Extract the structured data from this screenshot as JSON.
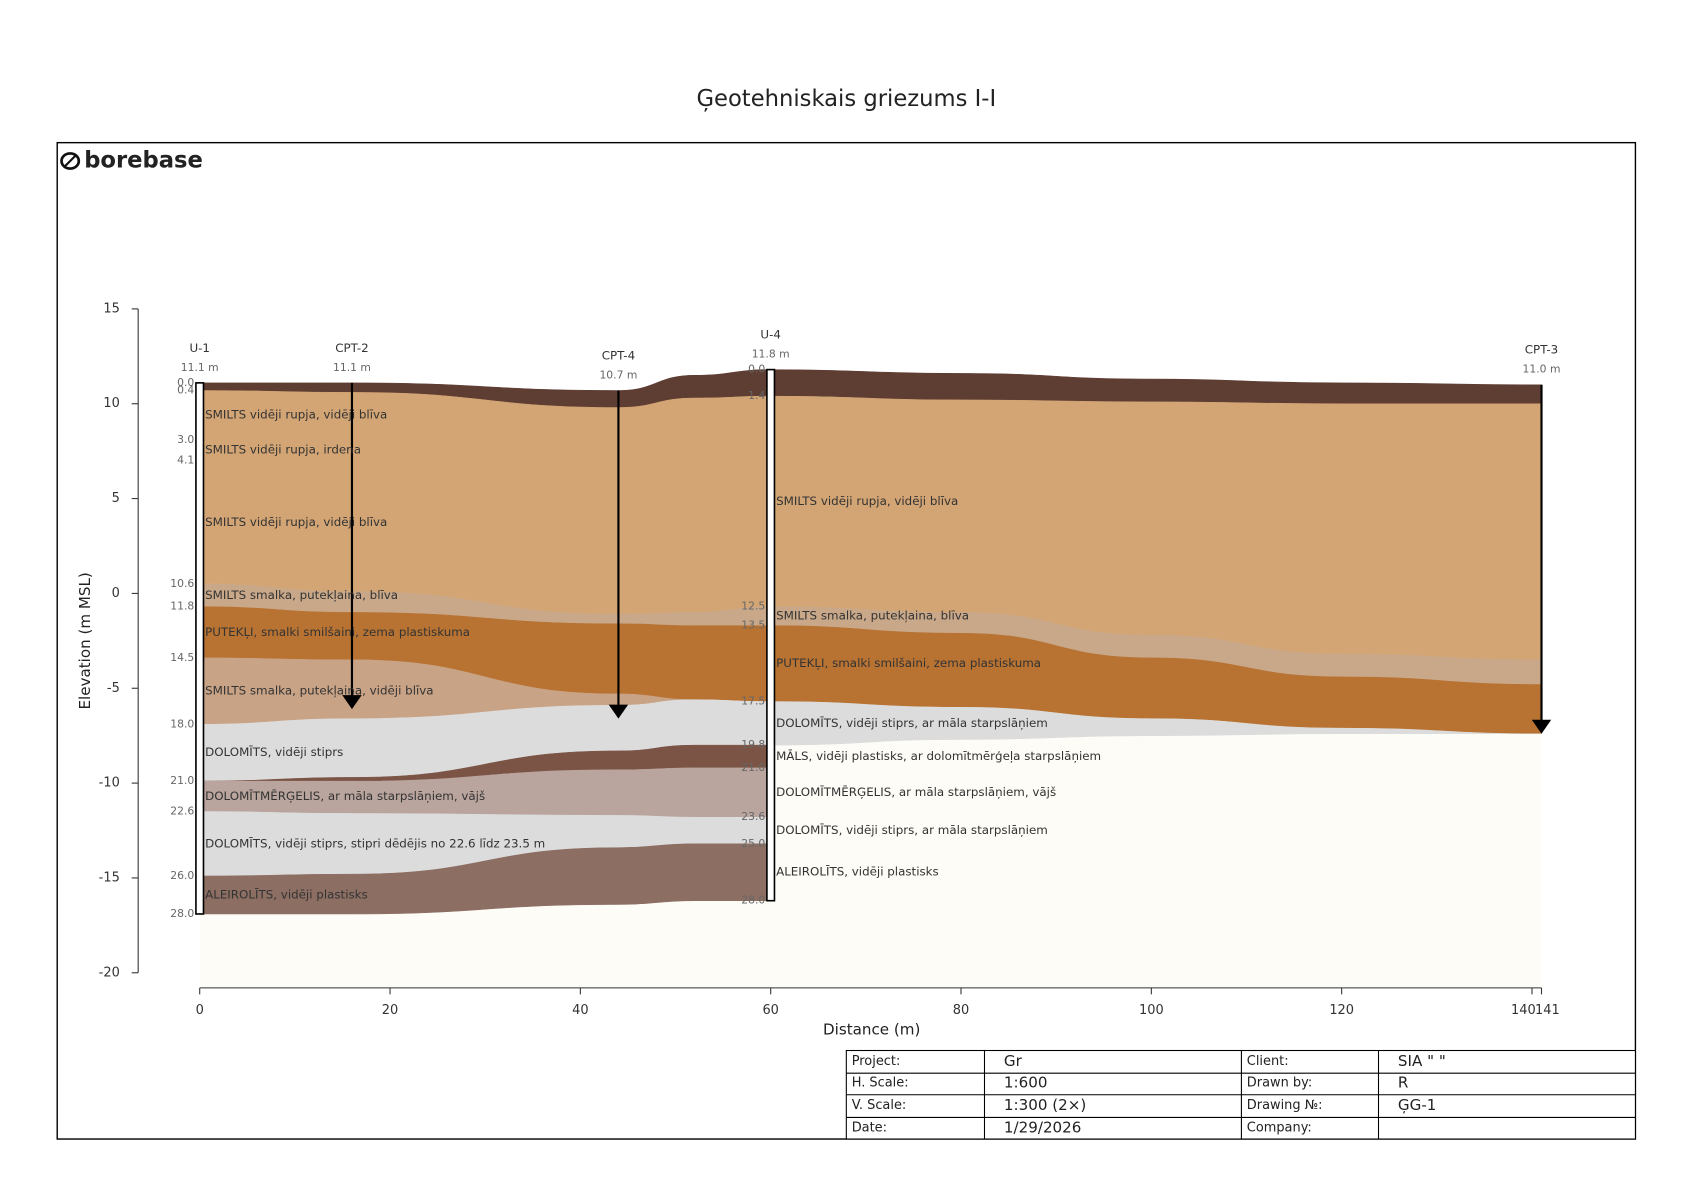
{
  "title": "Ģeotehniskais griezums I-I",
  "logo": "borebase",
  "chart_data": {
    "type": "cross-section",
    "xlabel": "Distance (m)",
    "ylabel": "Elevation (m MSL)",
    "xlim": [
      0,
      141
    ],
    "ylim": [
      -20,
      15
    ],
    "xticks": [
      0,
      20,
      40,
      60,
      80,
      100,
      120,
      140,
      141
    ],
    "yticks": [
      15,
      10,
      5,
      0,
      -5,
      -10,
      -15,
      -20
    ],
    "layers": [
      {
        "color": "#5e3d33",
        "x": [
          0,
          16,
          44,
          52,
          60,
          80,
          100,
          120,
          141
        ],
        "top": [
          11.1,
          11.1,
          10.7,
          11.5,
          11.8,
          11.6,
          11.3,
          11.1,
          11.0
        ],
        "bottom": [
          10.7,
          10.6,
          9.8,
          10.3,
          10.4,
          10.2,
          10.1,
          10.0,
          10.0
        ]
      },
      {
        "color": "#d3a574",
        "x": [
          0,
          16,
          44,
          52,
          60,
          80,
          100,
          120,
          141
        ],
        "top": [
          10.7,
          10.6,
          9.8,
          10.3,
          10.4,
          10.2,
          10.1,
          10.0,
          10.0
        ],
        "bottom": [
          0.5,
          0.1,
          -1.1,
          -1.0,
          -0.7,
          -1.0,
          -2.2,
          -3.2,
          -3.5
        ]
      },
      {
        "color": "#c9a889",
        "x": [
          0,
          16,
          44,
          52,
          60,
          80,
          100,
          120,
          141
        ],
        "top": [
          0.5,
          0.1,
          -1.1,
          -1.0,
          -0.7,
          -1.0,
          -2.2,
          -3.2,
          -3.5
        ],
        "bottom": [
          -0.7,
          -1.0,
          -1.6,
          -1.7,
          -1.7,
          -2.1,
          -3.4,
          -4.4,
          -4.8
        ]
      },
      {
        "color": "#b87333",
        "x": [
          0,
          16,
          44,
          52,
          60,
          80,
          100,
          120,
          141
        ],
        "top": [
          -0.7,
          -1.0,
          -1.6,
          -1.7,
          -1.7,
          -2.1,
          -3.4,
          -4.4,
          -4.8
        ],
        "bottom": [
          -3.4,
          -3.5,
          -5.3,
          -5.6,
          -5.7,
          -6.0,
          -6.6,
          -7.1,
          -7.4
        ]
      },
      {
        "color": "#c9a386",
        "x": [
          0,
          16,
          44,
          52
        ],
        "top": [
          -3.4,
          -3.5,
          -5.3,
          -5.6
        ],
        "bottom": [
          -6.9,
          -6.6,
          -5.9,
          -5.6
        ]
      },
      {
        "color": "#dcdcdc",
        "x": [
          0,
          16,
          44,
          52,
          60,
          80,
          100,
          120,
          141
        ],
        "top": [
          -6.9,
          -6.6,
          -5.9,
          -5.6,
          -5.7,
          -6.0,
          -6.6,
          -7.1,
          -7.4
        ],
        "bottom": [
          -9.9,
          -9.7,
          -8.3,
          -8.0,
          -8.0,
          -7.7,
          -7.5,
          -7.4,
          -7.4
        ]
      },
      {
        "color": "#7b5446",
        "x": [
          0,
          16,
          44,
          52,
          60
        ],
        "top": [
          -9.9,
          -9.7,
          -8.3,
          -8.0,
          -8.0
        ],
        "bottom": [
          -9.9,
          -9.9,
          -9.3,
          -9.2,
          -9.2
        ]
      },
      {
        "color": "#b9a59e",
        "x": [
          0,
          16,
          44,
          52,
          60
        ],
        "top": [
          -9.9,
          -9.9,
          -9.3,
          -9.2,
          -9.2
        ],
        "bottom": [
          -11.5,
          -11.6,
          -11.7,
          -11.8,
          -11.8
        ]
      },
      {
        "color": "#dcdcdc",
        "x": [
          0,
          16,
          44,
          52,
          60
        ],
        "top": [
          -11.5,
          -11.6,
          -11.7,
          -11.8,
          -11.8
        ],
        "bottom": [
          -14.9,
          -14.8,
          -13.4,
          -13.2,
          -13.2
        ]
      },
      {
        "color": "#8c6e63",
        "x": [
          0,
          16,
          44,
          52,
          60
        ],
        "top": [
          -14.9,
          -14.8,
          -13.4,
          -13.2,
          -13.2
        ],
        "bottom": [
          -16.9,
          -16.9,
          -16.4,
          -16.2,
          -16.2
        ]
      }
    ],
    "boreholes": [
      {
        "name": "U-1",
        "x": 0,
        "elevation": 11.1,
        "elevation_label": "11.1 m",
        "depths": [
          0,
          0.4,
          3.0,
          4.1,
          10.6,
          11.8,
          14.5,
          18.0,
          21.0,
          22.6,
          26.0,
          28.0
        ],
        "depth_labels": [
          "0.0",
          "0.4",
          "3.0",
          "4.1",
          "10.6",
          "11.8",
          "14.5",
          "18.0",
          "21.0",
          "22.6",
          "26.0",
          "28.0"
        ],
        "labels": [
          null,
          "SMILTS vidēji rupja, vidēji blīva",
          "SMILTS vidēji rupja, irdena",
          "SMILTS vidēji rupja, vidēji blīva",
          "SMILTS smalka, putekļaina, blīva",
          "PUTEKĻI, smalki smilšaini, zema plastiskuma",
          "SMILTS smalka, putekļaina, vidēji blīva",
          "DOLOMĪTS, vidēji stiprs",
          "DOLOMĪTMĒRĢELIS, ar māla starpslāņiem, vājš",
          "DOLOMĪTS, vidēji stiprs, stipri dēdējis no 22.6 līdz 23.5 m",
          "ALEIROLĪTS, vidēji plastisks"
        ]
      },
      {
        "name": "U-4",
        "x": 60,
        "elevation": 11.8,
        "elevation_label": "11.8 m",
        "depths": [
          0,
          1.4,
          12.5,
          13.5,
          17.5,
          19.8,
          21.0,
          23.6,
          25.0,
          28.0
        ],
        "depth_labels": [
          "0.0",
          "1.4",
          "12.5",
          "13.5",
          "17.5",
          "19.8",
          "21.0",
          "23.6",
          "25.0",
          "28.0"
        ],
        "labels": [
          null,
          "SMILTS vidēji rupja, vidēji blīva",
          "SMILTS smalka, putekļaina, blīva",
          "PUTEKĻI, smalki smilšaini, zema plastiskuma",
          "DOLOMĪTS, vidēji stiprs, ar māla starpslāņiem",
          "MĀLS, vidēji plastisks, ar dolomītmērģeļa starpslāņiem",
          "DOLOMĪTMĒRĢELIS, ar māla starpslāņiem, vājš",
          "DOLOMĪTS, vidēji stiprs, ar māla starpslāņiem",
          "ALEIROLĪTS, vidēji plastisks"
        ]
      }
    ],
    "cpts": [
      {
        "name": "CPT-2",
        "x": 16,
        "elevation": 11.1,
        "elevation_label": "11.1 m",
        "depth": 17.2
      },
      {
        "name": "CPT-4",
        "x": 44,
        "elevation": 10.7,
        "elevation_label": "10.7 m",
        "depth": 17.3
      },
      {
        "name": "CPT-3",
        "x": 141,
        "elevation": 11.0,
        "elevation_label": "11.0 m",
        "depth": 18.4
      }
    ]
  },
  "title_block": {
    "rows": [
      [
        "Project:",
        "Gr",
        "Client:",
        "SIA \"            \""
      ],
      [
        "H. Scale:",
        "1:600",
        "Drawn by:",
        "R"
      ],
      [
        "V. Scale:",
        "1:300 (2×)",
        "Drawing №:",
        "ĢG-1"
      ],
      [
        "Date:",
        "1/29/2026",
        "Company:"
      ]
    ]
  }
}
